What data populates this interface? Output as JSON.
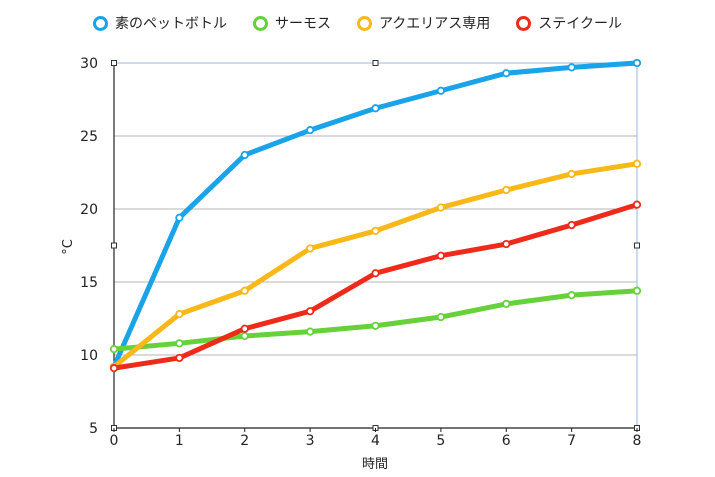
{
  "chart_data": {
    "type": "line",
    "title": "",
    "xlabel": "時間",
    "ylabel": "°C",
    "x": [
      0,
      1,
      2,
      3,
      4,
      5,
      6,
      7,
      8
    ],
    "xlim": [
      0,
      8
    ],
    "ylim": [
      5,
      30
    ],
    "yticks": [
      5,
      10,
      15,
      20,
      25,
      30
    ],
    "grid": true,
    "legend_position": "top",
    "series": [
      {
        "name": "素のペットボトル",
        "color": "#1aa3e8",
        "values": [
          9.2,
          19.4,
          23.7,
          25.4,
          26.9,
          28.1,
          29.3,
          29.7,
          30.0
        ]
      },
      {
        "name": "サーモス",
        "color": "#66d13a",
        "values": [
          10.4,
          10.8,
          11.3,
          11.6,
          12.0,
          12.6,
          13.5,
          14.1,
          14.4
        ]
      },
      {
        "name": "アクエリアス専用",
        "color": "#f7b818",
        "values": [
          9.2,
          12.8,
          14.4,
          17.3,
          18.5,
          20.1,
          21.3,
          22.4,
          23.1
        ]
      },
      {
        "name": "ステイクール",
        "color": "#ee2b1b",
        "values": [
          9.1,
          9.8,
          11.8,
          13.0,
          15.6,
          16.8,
          17.6,
          18.9,
          20.3
        ]
      }
    ]
  }
}
